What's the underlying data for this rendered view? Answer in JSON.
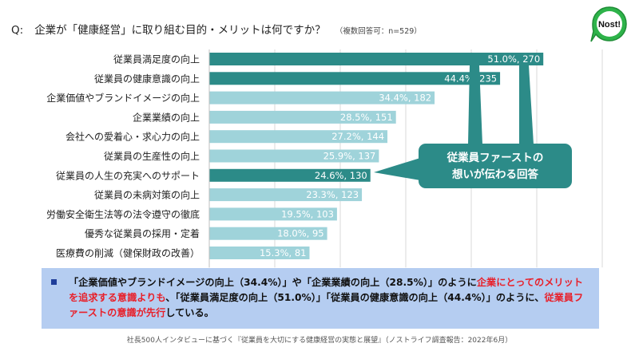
{
  "question": {
    "label": "Q:",
    "text": "企業が「健康経営」に取り組む目的・メリットは何ですか？",
    "note": "（複数回答可：n=529）"
  },
  "logo": {
    "text": "Nost!",
    "icon": "speech-bubble-logo",
    "color": "#2eb34a"
  },
  "chart_data": {
    "type": "bar",
    "orientation": "horizontal",
    "categories": [
      "従業員満足度の向上",
      "従業員の健康意識の向上",
      "企業価値やブランドイメージの向上",
      "企業業績の向上",
      "会社への愛着心・求心力の向上",
      "従業員の生産性の向上",
      "従業員の人生の充実へのサポート",
      "従業員の未病対策の向上",
      "労働安全衛生法等の法令遵守の徹底",
      "優秀な従業員の採用・定着",
      "医療費の削減（健保財政の改善）"
    ],
    "values": [
      51.0,
      44.4,
      34.4,
      28.5,
      27.2,
      25.9,
      24.6,
      23.3,
      19.5,
      18.0,
      15.3
    ],
    "counts": [
      270,
      235,
      182,
      151,
      144,
      137,
      130,
      123,
      103,
      95,
      81
    ],
    "data_labels": [
      "51.0%, 270",
      "44.4%, 235",
      "34.4%, 182",
      "28.5%, 151",
      "27.2%, 144",
      "25.9%, 137",
      "24.6%, 130",
      "23.3%, 123",
      "19.5%, 103",
      "18.0%, 95",
      "15.3%, 81"
    ],
    "highlighted": [
      true,
      true,
      false,
      false,
      false,
      false,
      true,
      false,
      false,
      false,
      false
    ],
    "colors": {
      "highlight": "#2c8b88",
      "normal": "#9fd3da",
      "grid": "#d9d9d9"
    },
    "xlim": [
      0,
      60
    ],
    "grid": true,
    "unit": "%",
    "callout": {
      "lines": [
        "従業員ファースト",
        "の",
        "想いが伝わる回答"
      ],
      "color": "#2c8b88"
    }
  },
  "summary": {
    "segments": [
      {
        "text": "「企業価値やブランドイメージの向上（34.4%）」や「企業業績の向上（28.5%）」のように",
        "red": false
      },
      {
        "text": "企業にとってのメリットを追求する意識よりも",
        "red": true
      },
      {
        "text": "、「従業員満足度の向上（51.0%）」「従業員の健康意識の向上（44.4%）」のように、",
        "red": false
      },
      {
        "text": "従業員ファーストの意識が先行",
        "red": true
      },
      {
        "text": "している。",
        "red": false
      }
    ],
    "bg_color": "#b5cdf1"
  },
  "footnote": "社長500人インタビューに基づく『従業員を大切にする健康経営の実態と展望』（ノストライフ調査報告：2022年6月）"
}
